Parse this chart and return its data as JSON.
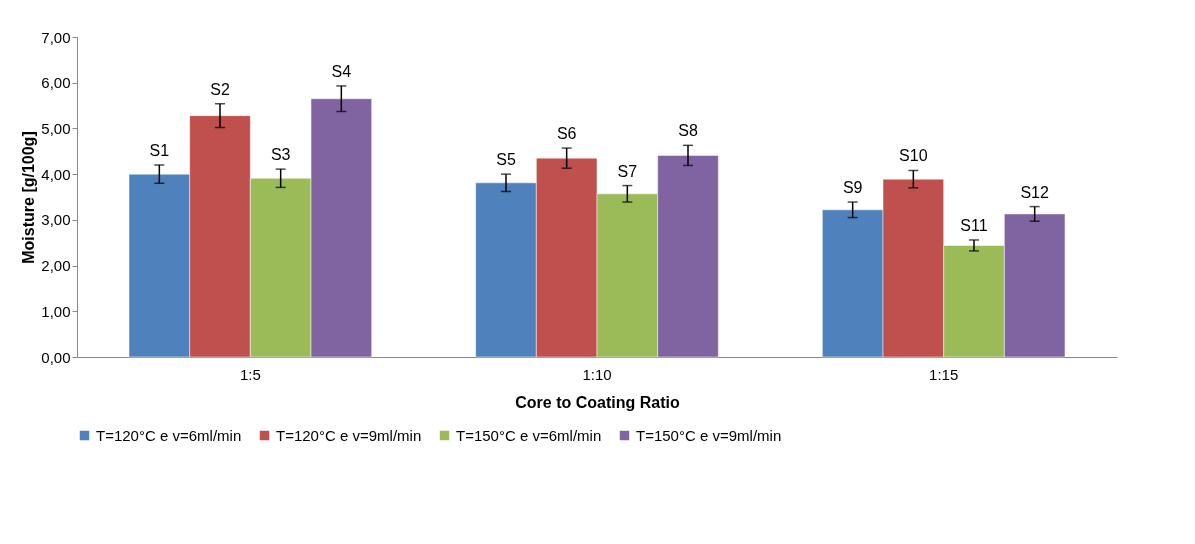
{
  "chart_data": {
    "type": "bar",
    "xlabel": "Core to Coating Ratio",
    "ylabel": "Moisture [g/100g]",
    "categories": [
      "1:5",
      "1:10",
      "1:15"
    ],
    "series": [
      {
        "name": "T=120°C e v=6ml/min",
        "color": "#4f81bd",
        "values": [
          4.0,
          3.81,
          3.22
        ],
        "errors": [
          0.2,
          0.19,
          0.17
        ],
        "value_labels": [
          "S1",
          "S5",
          "S9"
        ]
      },
      {
        "name": "T=120°C e v=9ml/min",
        "color": "#c0504d",
        "values": [
          5.28,
          4.35,
          3.89
        ],
        "errors": [
          0.26,
          0.22,
          0.19
        ],
        "value_labels": [
          "S2",
          "S6",
          "S10"
        ]
      },
      {
        "name": "T=150°C e v=6ml/min",
        "color": "#9bbb59",
        "values": [
          3.91,
          3.57,
          2.44
        ],
        "errors": [
          0.2,
          0.18,
          0.12
        ],
        "value_labels": [
          "S3",
          "S7",
          "S11"
        ]
      },
      {
        "name": "T=150°C e v=9ml/min",
        "color": "#8064a2",
        "values": [
          5.65,
          4.41,
          3.13
        ],
        "errors": [
          0.28,
          0.22,
          0.16
        ],
        "value_labels": [
          "S4",
          "S8",
          "S12"
        ]
      }
    ],
    "ylim": [
      0,
      7
    ],
    "yticks": [
      {
        "value": 0,
        "label": "0,00"
      },
      {
        "value": 1,
        "label": "1,00"
      },
      {
        "value": 2,
        "label": "2,00"
      },
      {
        "value": 3,
        "label": "3,00"
      },
      {
        "value": 4,
        "label": "4,00"
      },
      {
        "value": 5,
        "label": "5,00"
      },
      {
        "value": 6,
        "label": "6,00"
      },
      {
        "value": 7,
        "label": "7,00"
      }
    ],
    "grid": false,
    "legend": "bottom"
  }
}
